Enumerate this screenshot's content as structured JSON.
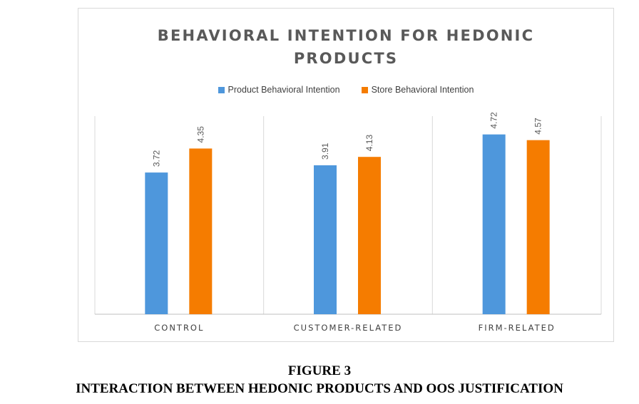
{
  "chart_data": {
    "type": "bar",
    "title": "BEHAVIORAL INTENTION FOR HEDONIC PRODUCTS",
    "title_lines": [
      "BEHAVIORAL INTENTION FOR HEDONIC",
      "PRODUCTS"
    ],
    "categories": [
      "CONTROL",
      "CUSTOMER-RELATED",
      "FIRM-RELATED"
    ],
    "series": [
      {
        "name": "Product Behavioral Intention",
        "color": "#4e97dc",
        "values": [
          3.72,
          3.91,
          4.72
        ]
      },
      {
        "name": "Store Behavioral Intention",
        "color": "#f57c00",
        "values": [
          4.35,
          4.13,
          4.57
        ]
      }
    ],
    "value_labels": [
      [
        "3.72",
        "3.91",
        "4.72"
      ],
      [
        "4.35",
        "4.13",
        "4.57"
      ]
    ],
    "ylim": [
      0,
      5.2
    ],
    "xlabel": "",
    "ylabel": "",
    "legend_position": "top",
    "grid": false
  },
  "figure": {
    "number": "FIGURE 3",
    "caption": "INTERACTION BETWEEN HEDONIC PRODUCTS AND OOS JUSTIFICATION"
  }
}
